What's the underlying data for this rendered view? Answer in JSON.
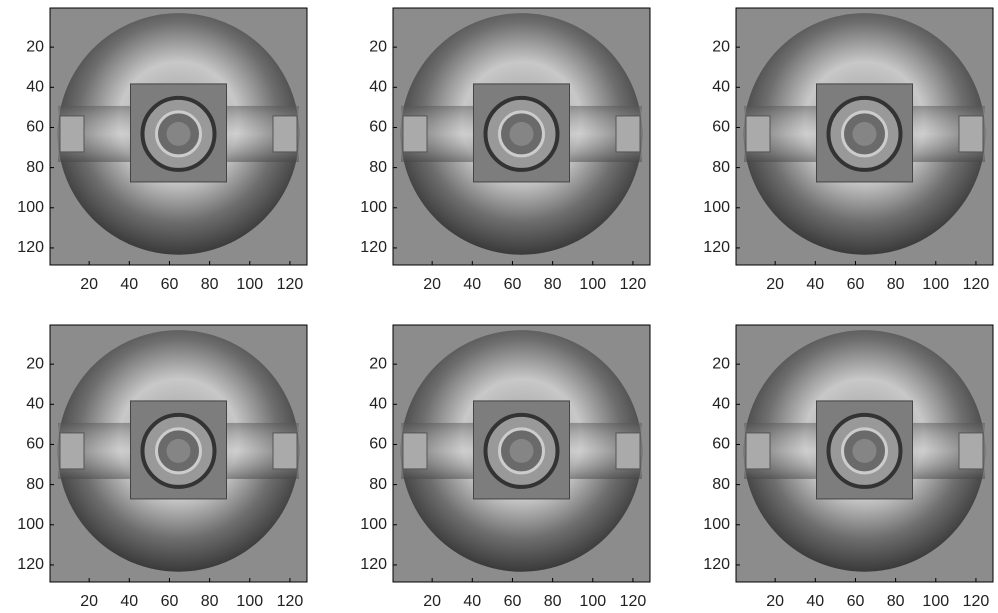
{
  "chart_data": [
    {
      "type": "image",
      "xlim": [
        0.5,
        128.5
      ],
      "ylim": [
        0.5,
        128.5
      ],
      "y_reversed": true,
      "xticks": [
        20,
        40,
        60,
        80,
        100,
        120
      ],
      "yticks": [
        20,
        40,
        60,
        80,
        100,
        120
      ]
    },
    {
      "type": "image",
      "xlim": [
        0.5,
        128.5
      ],
      "ylim": [
        0.5,
        128.5
      ],
      "y_reversed": true,
      "xticks": [
        20,
        40,
        60,
        80,
        100,
        120
      ],
      "yticks": [
        20,
        40,
        60,
        80,
        100,
        120
      ]
    },
    {
      "type": "image",
      "xlim": [
        0.5,
        128.5
      ],
      "ylim": [
        0.5,
        128.5
      ],
      "y_reversed": true,
      "xticks": [
        20,
        40,
        60,
        80,
        100,
        120
      ],
      "yticks": [
        20,
        40,
        60,
        80,
        100,
        120
      ]
    },
    {
      "type": "image",
      "xlim": [
        0.5,
        128.5
      ],
      "ylim": [
        0.5,
        128.5
      ],
      "y_reversed": true,
      "xticks": [
        20,
        40,
        60,
        80,
        100,
        120
      ],
      "yticks": [
        20,
        40,
        60,
        80,
        100,
        120
      ]
    },
    {
      "type": "image",
      "xlim": [
        0.5,
        128.5
      ],
      "ylim": [
        0.5,
        128.5
      ],
      "y_reversed": true,
      "xticks": [
        20,
        40,
        60,
        80,
        100,
        120
      ],
      "yticks": [
        20,
        40,
        60,
        80,
        100,
        120
      ]
    },
    {
      "type": "image",
      "xlim": [
        0.5,
        128.5
      ],
      "ylim": [
        0.5,
        128.5
      ],
      "y_reversed": true,
      "xticks": [
        20,
        40,
        60,
        80,
        100,
        120
      ],
      "yticks": [
        20,
        40,
        60,
        80,
        100,
        120
      ]
    }
  ]
}
